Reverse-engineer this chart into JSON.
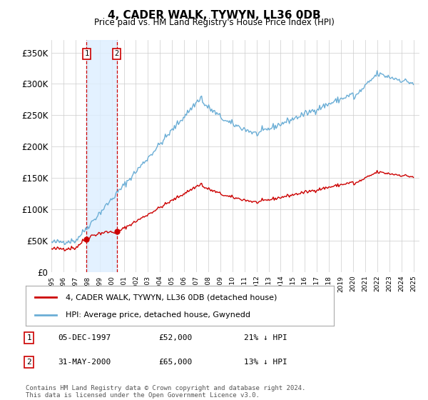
{
  "title": "4, CADER WALK, TYWYN, LL36 0DB",
  "subtitle": "Price paid vs. HM Land Registry's House Price Index (HPI)",
  "ylim": [
    0,
    370000
  ],
  "yticks": [
    0,
    50000,
    100000,
    150000,
    200000,
    250000,
    300000,
    350000
  ],
  "ytick_labels": [
    "£0",
    "£50K",
    "£100K",
    "£150K",
    "£200K",
    "£250K",
    "£300K",
    "£350K"
  ],
  "x_start_year": 1995,
  "x_end_year": 2025,
  "hpi_color": "#6baed6",
  "price_color": "#cc0000",
  "sale1_price": 52000,
  "sale1_year": 1997.92,
  "sale2_price": 65000,
  "sale2_year": 2000.42,
  "legend_label_price": "4, CADER WALK, TYWYN, LL36 0DB (detached house)",
  "legend_label_hpi": "HPI: Average price, detached house, Gwynedd",
  "annotation1_label": "1",
  "annotation1_date": "05-DEC-1997",
  "annotation1_price": "£52,000",
  "annotation1_pct": "21% ↓ HPI",
  "annotation2_label": "2",
  "annotation2_date": "31-MAY-2000",
  "annotation2_price": "£65,000",
  "annotation2_pct": "13% ↓ HPI",
  "footer": "Contains HM Land Registry data © Crown copyright and database right 2024.\nThis data is licensed under the Open Government Licence v3.0.",
  "bg_color": "#ffffff",
  "grid_color": "#cccccc",
  "shaded_region_color": "#ddeeff"
}
